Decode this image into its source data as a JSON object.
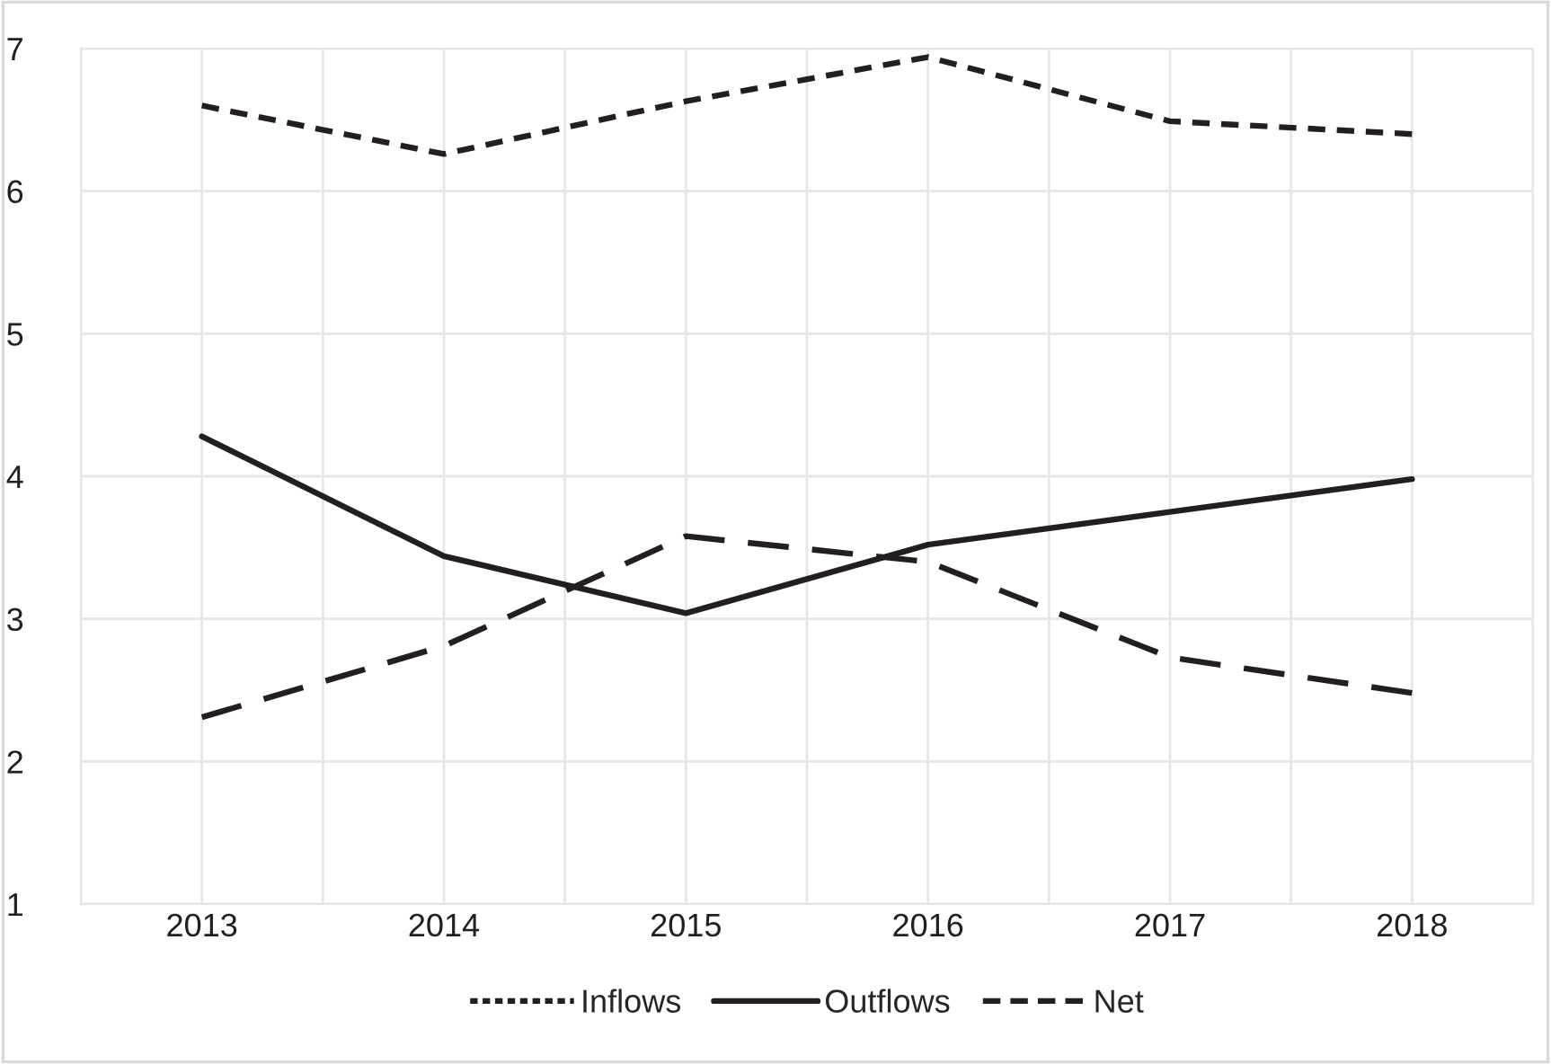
{
  "chart_data": {
    "type": "line",
    "categories": [
      "2013",
      "2014",
      "2015",
      "2016",
      "2017",
      "2018"
    ],
    "series": [
      {
        "name": "Inflows",
        "color": "#231f20",
        "line_style": "dotted",
        "values": [
          6.6,
          6.26,
          6.63,
          6.94,
          6.49,
          6.4
        ]
      },
      {
        "name": "Outflows",
        "color": "#231f20",
        "line_style": "solid",
        "values": [
          4.28,
          3.44,
          3.04,
          3.52,
          3.75,
          3.98
        ]
      },
      {
        "name": "Net",
        "color": "#231f20",
        "line_style": "dashed",
        "values": [
          2.31,
          2.81,
          3.58,
          3.4,
          2.73,
          2.48
        ]
      }
    ],
    "ylim": [
      1,
      7
    ],
    "yticks": [
      1,
      2,
      3,
      4,
      5,
      6,
      7
    ],
    "grid": true,
    "legend": "bottom",
    "marker": "none"
  }
}
